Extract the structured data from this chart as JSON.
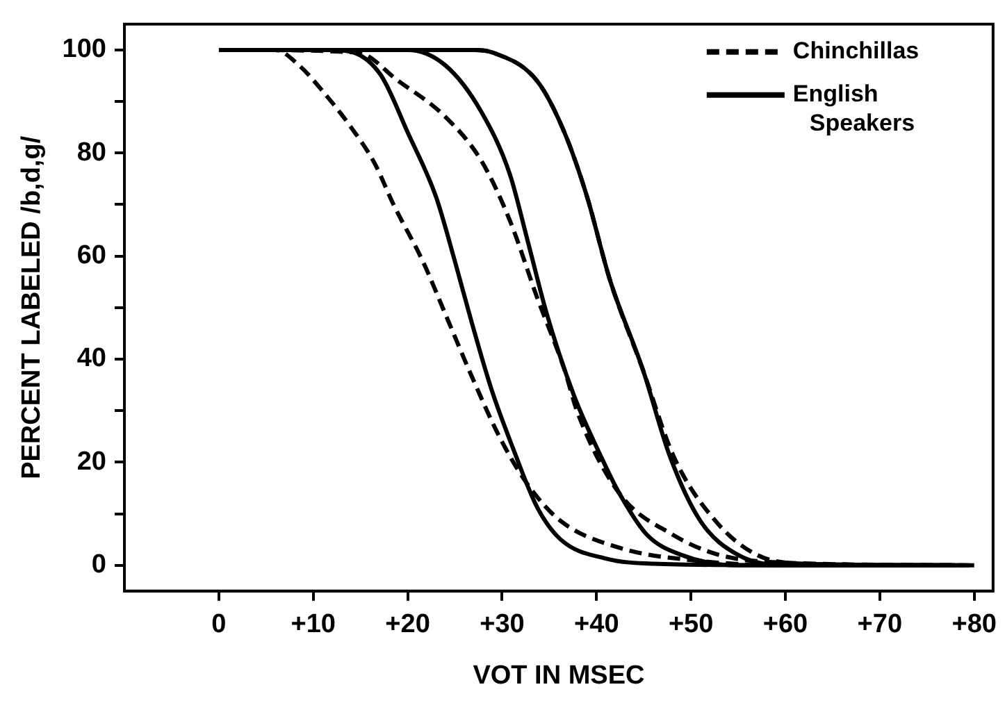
{
  "chart_data": {
    "type": "line",
    "xlabel": "VOT IN MSEC",
    "ylabel": "PERCENT LABELED /b,d,g/",
    "xlim": [
      -10,
      82
    ],
    "ylim": [
      -5,
      105
    ],
    "xticks": [
      0,
      {
        "value": 10,
        "label": "+10"
      },
      {
        "value": 20,
        "label": "+20"
      },
      {
        "value": 30,
        "label": "+30"
      },
      {
        "value": 40,
        "label": "+40"
      },
      {
        "value": 50,
        "label": "+50"
      },
      {
        "value": 60,
        "label": "+60"
      },
      {
        "value": 70,
        "label": "+70"
      },
      {
        "value": 80,
        "label": "+80"
      }
    ],
    "yticks": [
      0,
      {
        "value": 10,
        "label": null
      },
      20,
      {
        "value": 30,
        "label": null
      },
      40,
      {
        "value": 50,
        "label": null
      },
      60,
      {
        "value": 70,
        "label": null
      },
      80,
      {
        "value": 90,
        "label": null
      },
      100
    ],
    "grid": false,
    "legend": "top right",
    "marker": "none",
    "series": [
      {
        "name": "Chinchillas",
        "color": "#000000",
        "line_style": "dashed",
        "x": [
          1,
          6,
          8.5,
          11,
          14,
          16.5,
          18.5,
          21.6,
          24,
          26.8,
          29.7,
          32.7,
          36.2,
          42.4,
          50,
          60,
          79
        ],
        "values": [
          100,
          100,
          97,
          92,
          85,
          78,
          70,
          59,
          48.7,
          36.6,
          25,
          15.7,
          8.6,
          3.4,
          1,
          0,
          0
        ]
      },
      {
        "name": "English Speakers",
        "color": "#000000",
        "line_style": "solid",
        "x": [
          0,
          12,
          14.3,
          17.2,
          20,
          23,
          25,
          26.8,
          28.9,
          31.2,
          33.7,
          36.2,
          41,
          46,
          60,
          80
        ],
        "values": [
          100,
          100,
          99.5,
          95,
          84,
          71.5,
          59,
          47,
          34,
          22.5,
          11.3,
          5,
          1.3,
          0.3,
          0,
          0
        ]
      },
      {
        "color": "#000000",
        "line_style": "dashed",
        "x": [
          1.5,
          14.7,
          19,
          24,
          27.8,
          30.8,
          33.7,
          36.6,
          38,
          42.4,
          48,
          53,
          60,
          78.5
        ],
        "values": [
          100,
          99.5,
          94,
          87,
          78.5,
          67,
          52,
          38,
          29.6,
          14,
          6,
          2,
          0.5,
          0
        ]
      },
      {
        "color": "#000000",
        "line_style": "solid",
        "x": [
          0.5,
          20,
          24,
          27.8,
          30.8,
          32.7,
          34.7,
          37.6,
          40.5,
          42.4,
          45.3,
          49,
          55,
          79.5
        ],
        "values": [
          100,
          100,
          97,
          88,
          76,
          63,
          49,
          33,
          21,
          14,
          6,
          2,
          0,
          0
        ]
      },
      {
        "color": "#000000",
        "line_style": "solid",
        "x": [
          2,
          27,
          29,
          33.7,
          36.6,
          39,
          41.4,
          44.9,
          47.8,
          51,
          55,
          60,
          78
        ],
        "values": [
          100,
          100,
          99.5,
          94,
          84,
          71.5,
          55.5,
          38,
          21,
          8.6,
          2,
          0,
          0
        ]
      },
      {
        "color": "#000000",
        "line_style": "dashed",
        "x": [
          2.5,
          27,
          29,
          33.7,
          36.6,
          39,
          41.4,
          44.9,
          48.2,
          52.6,
          57,
          62,
          77.5
        ],
        "values": [
          100,
          100,
          99.5,
          94,
          84,
          71.5,
          55.5,
          38,
          21,
          8.6,
          2,
          0.3,
          0
        ]
      }
    ]
  }
}
